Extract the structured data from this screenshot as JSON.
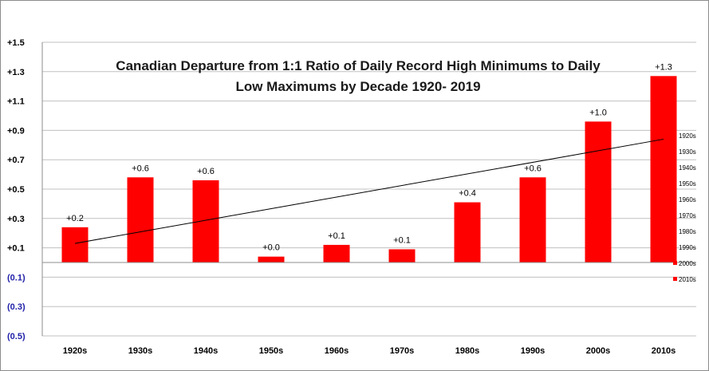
{
  "chart_data": {
    "type": "bar",
    "title_lines": [
      "Canadian Departure from 1:1 Ratio of Daily Record High Minimums to Daily",
      "Low Maximums by Decade 1920- 2019"
    ],
    "categories": [
      "1920s",
      "1930s",
      "1940s",
      "1950s",
      "1960s",
      "1970s",
      "1980s",
      "1990s",
      "2000s",
      "2010s"
    ],
    "values": [
      0.24,
      0.58,
      0.56,
      0.04,
      0.12,
      0.09,
      0.41,
      0.58,
      0.96,
      1.27
    ],
    "data_labels": [
      "+0.2",
      "+0.6",
      "+0.6",
      "+0.0",
      "+0.1",
      "+0.1",
      "+0.4",
      "+0.6",
      "+1.0",
      "+1.3"
    ],
    "ylim": [
      -0.5,
      1.5
    ],
    "yticks": [
      {
        "value": 1.5,
        "label": "+1.5"
      },
      {
        "value": 1.3,
        "label": "+1.3"
      },
      {
        "value": 1.1,
        "label": "+1.1"
      },
      {
        "value": 0.9,
        "label": "+0.9"
      },
      {
        "value": 0.7,
        "label": "+0.7"
      },
      {
        "value": 0.5,
        "label": "+0.5"
      },
      {
        "value": 0.3,
        "label": "+0.3"
      },
      {
        "value": 0.1,
        "label": "+0.1"
      },
      {
        "value": -0.1,
        "label": "(0.1)"
      },
      {
        "value": -0.3,
        "label": "(0.3)"
      },
      {
        "value": -0.5,
        "label": "(0.5)"
      }
    ],
    "trendline": {
      "start": 0.13,
      "end": 0.84
    },
    "legend": {
      "placement": "right",
      "entries": [
        "1920s",
        "1930s",
        "1940s",
        "1950s",
        "1960s",
        "1970s",
        "1980s",
        "1990s",
        "2000s",
        "2010s"
      ],
      "swatch_shown": [
        false,
        false,
        false,
        false,
        false,
        false,
        false,
        false,
        true,
        true
      ]
    },
    "grid": "horizontal",
    "colors": {
      "bar": "#ff0000",
      "trendline": "#000000",
      "grid": "#c0c0c0",
      "positive_tick": "#000000",
      "negative_tick": "#1f1fa8"
    }
  }
}
